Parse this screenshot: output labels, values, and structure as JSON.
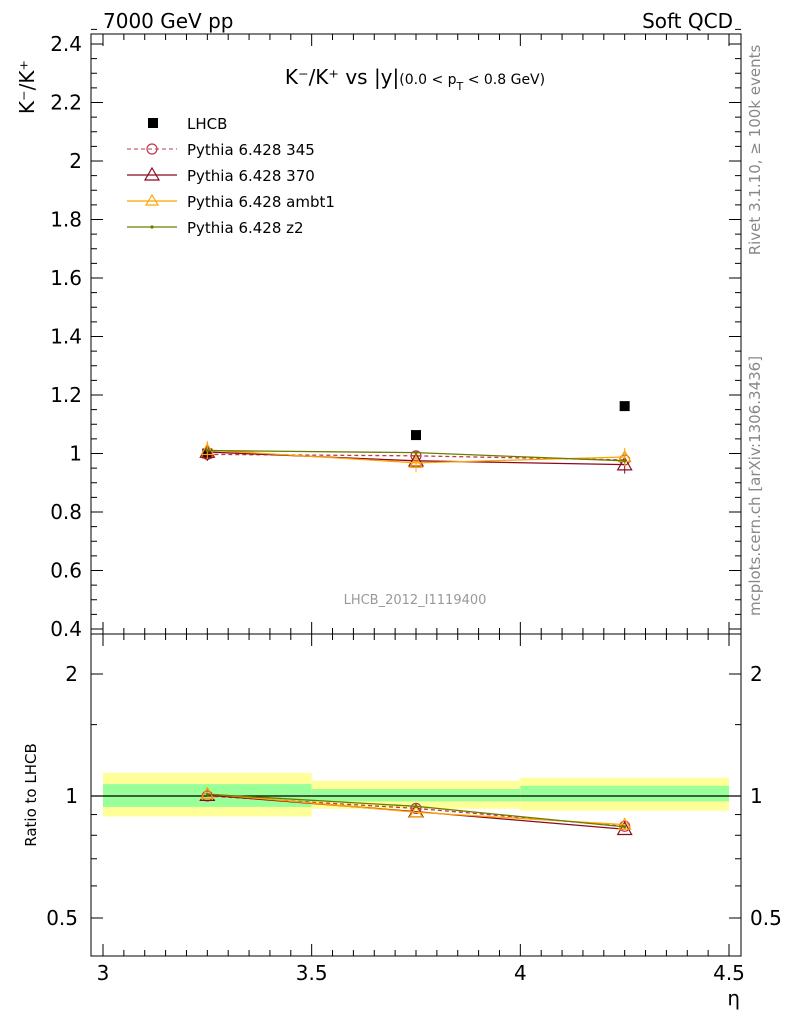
{
  "header": {
    "left": "7000 GeV pp",
    "right": "Soft QCD"
  },
  "side_labels": {
    "rivet": "Rivet 3.1.10, ≥ 100k events",
    "mcplots": "mcplots.cern.ch [arXiv:1306.3436]"
  },
  "colors": {
    "lhcb": "#000000",
    "p345": "#c0394b",
    "p370": "#8b0a1e",
    "ambt1": "#ffa500",
    "z2": "#6b7d00",
    "band_inner": "#99ff99",
    "band_outer": "#ffff99"
  },
  "chart_data": [
    {
      "type": "scatter",
      "title_parts": {
        "main": "K⁻/K⁺ vs |y|",
        "sub": "(0.0 < p",
        "sub_T": "T",
        "sub_end": " < 0.8 GeV)"
      },
      "ylabel": "K⁻/K⁺",
      "watermark": "LHCB_2012_I1119400",
      "xlim": [
        3.0,
        4.5
      ],
      "ylim": [
        0.4,
        2.45
      ],
      "yticks": [
        0.4,
        0.6,
        0.8,
        1,
        1.2,
        1.4,
        1.6,
        1.8,
        2,
        2.2,
        2.4
      ],
      "ytick_labels": [
        "0.4",
        "0.6",
        "0.8",
        "1",
        "1.2",
        "1.4",
        "1.6",
        "1.8",
        "2",
        "2.2",
        "2.4"
      ],
      "legend_position": "top-left",
      "series": [
        {
          "name": "LHCB",
          "key": "lhcb",
          "marker": "square",
          "x": [
            3.25,
            3.75,
            4.25
          ],
          "y": [
            1.0,
            1.063,
            1.162
          ]
        },
        {
          "name": "Pythia 6.428 345",
          "key": "p345",
          "marker": "circle",
          "dashed": true,
          "x": [
            3.25,
            3.75,
            4.25
          ],
          "y": [
            0.997,
            0.992,
            0.978
          ]
        },
        {
          "name": "Pythia 6.428 370",
          "key": "p370",
          "marker": "triangle",
          "x": [
            3.25,
            3.75,
            4.25
          ],
          "y": [
            1.005,
            0.975,
            0.962
          ]
        },
        {
          "name": "Pythia 6.428 ambt1",
          "key": "ambt1",
          "marker": "triangle",
          "x": [
            3.25,
            3.75,
            4.25
          ],
          "y": [
            1.012,
            0.968,
            0.988
          ]
        },
        {
          "name": "Pythia 6.428 z2",
          "key": "z2",
          "marker": "dot",
          "x": [
            3.25,
            3.75,
            4.25
          ],
          "y": [
            1.01,
            1.003,
            0.975
          ]
        }
      ]
    },
    {
      "type": "line",
      "ylabel": "Ratio to LHCB",
      "xlabel": "η",
      "xlim": [
        3.0,
        4.5
      ],
      "xticks": [
        3,
        3.5,
        4,
        4.5
      ],
      "xtick_labels": [
        "3",
        "3.5",
        "4",
        "4.5"
      ],
      "ylim": [
        0.4,
        2.3
      ],
      "ytick_labels": [
        "0.5",
        "1",
        "2"
      ],
      "yticks": [
        0.5,
        1,
        2
      ],
      "uncertainty_bands": [
        {
          "x": [
            3.0,
            3.5
          ],
          "inner": [
            0.94,
            1.07
          ],
          "outer": [
            0.89,
            1.14
          ]
        },
        {
          "x": [
            3.5,
            4.0
          ],
          "inner": [
            0.97,
            1.04
          ],
          "outer": [
            0.93,
            1.09
          ]
        },
        {
          "x": [
            4.0,
            4.5
          ],
          "inner": [
            0.97,
            1.06
          ],
          "outer": [
            0.92,
            1.11
          ]
        }
      ],
      "series": [
        {
          "name": "Pythia 6.428 345",
          "key": "p345",
          "marker": "circle",
          "dashed": true,
          "x": [
            3.25,
            3.75,
            4.25
          ],
          "y": [
            1.0,
            0.932,
            0.842
          ]
        },
        {
          "name": "Pythia 6.428 370",
          "key": "p370",
          "marker": "triangle",
          "x": [
            3.25,
            3.75,
            4.25
          ],
          "y": [
            1.005,
            0.915,
            0.828
          ]
        },
        {
          "name": "Pythia 6.428 ambt1",
          "key": "ambt1",
          "marker": "triangle",
          "x": [
            3.25,
            3.75,
            4.25
          ],
          "y": [
            1.012,
            0.912,
            0.85
          ]
        },
        {
          "name": "Pythia 6.428 z2",
          "key": "z2",
          "marker": "dot",
          "x": [
            3.25,
            3.75,
            4.25
          ],
          "y": [
            1.01,
            0.943,
            0.839
          ]
        }
      ]
    }
  ]
}
